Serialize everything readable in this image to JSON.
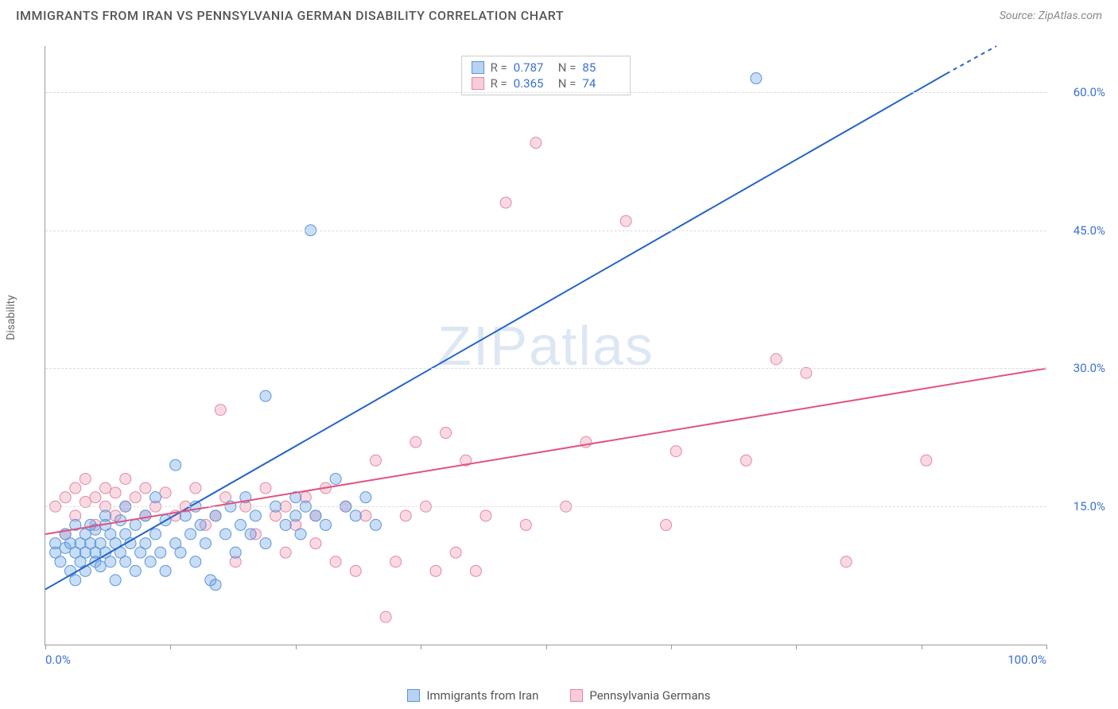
{
  "header": {
    "title": "IMMIGRANTS FROM IRAN VS PENNSYLVANIA GERMAN DISABILITY CORRELATION CHART",
    "source_prefix": "Source: ",
    "source_link": "ZipAtlas.com"
  },
  "watermark": {
    "text_bold": "ZIP",
    "text_thin": "atlas"
  },
  "chart": {
    "type": "scatter",
    "y_axis_label": "Disability",
    "x_range": [
      0,
      100
    ],
    "y_range": [
      0,
      65
    ],
    "x_min_label": "0.0%",
    "x_max_label": "100.0%",
    "y_ticks": [
      15.0,
      30.0,
      45.0,
      60.0
    ],
    "y_tick_labels": [
      "15.0%",
      "30.0%",
      "45.0%",
      "60.0%"
    ],
    "x_ticks": [
      0,
      12.5,
      25,
      37.5,
      50,
      62.5,
      75,
      87.5,
      100
    ],
    "grid_color": "#dddddd",
    "axis_color": "#999999",
    "background_color": "#ffffff",
    "series": [
      {
        "name": "Immigrants from Iran",
        "color_fill": "rgba(100,160,230,0.35)",
        "color_stroke": "#5a95d8",
        "swatch_fill": "#b8d2f0",
        "swatch_stroke": "#5a95d8",
        "r_stat": "0.787",
        "n_stat": "85",
        "trend": {
          "x1": 0,
          "y1": 6,
          "x2": 90,
          "y2": 62,
          "color": "#2464c8",
          "width": 2
        },
        "trend_dash_extend": {
          "x1": 90,
          "y1": 62,
          "x2": 95,
          "y2": 65
        },
        "points": [
          [
            1,
            10
          ],
          [
            1,
            11
          ],
          [
            1.5,
            9
          ],
          [
            2,
            10.5
          ],
          [
            2,
            12
          ],
          [
            2.5,
            8
          ],
          [
            2.5,
            11
          ],
          [
            3,
            10
          ],
          [
            3,
            13
          ],
          [
            3,
            7
          ],
          [
            3.5,
            11
          ],
          [
            3.5,
            9
          ],
          [
            4,
            10
          ],
          [
            4,
            12
          ],
          [
            4,
            8
          ],
          [
            4.5,
            11
          ],
          [
            4.5,
            13
          ],
          [
            5,
            9
          ],
          [
            5,
            10
          ],
          [
            5,
            12.5
          ],
          [
            5.5,
            8.5
          ],
          [
            5.5,
            11
          ],
          [
            6,
            10
          ],
          [
            6,
            13
          ],
          [
            6,
            14
          ],
          [
            6.5,
            9
          ],
          [
            6.5,
            12
          ],
          [
            7,
            7
          ],
          [
            7,
            11
          ],
          [
            7.5,
            10
          ],
          [
            7.5,
            13.5
          ],
          [
            8,
            9
          ],
          [
            8,
            12
          ],
          [
            8,
            15
          ],
          [
            8.5,
            11
          ],
          [
            9,
            8
          ],
          [
            9,
            13
          ],
          [
            9.5,
            10
          ],
          [
            10,
            14
          ],
          [
            10,
            11
          ],
          [
            10.5,
            9
          ],
          [
            11,
            12
          ],
          [
            11,
            16
          ],
          [
            11.5,
            10
          ],
          [
            12,
            8
          ],
          [
            12,
            13.5
          ],
          [
            13,
            11
          ],
          [
            13,
            19.5
          ],
          [
            13.5,
            10
          ],
          [
            14,
            14
          ],
          [
            14.5,
            12
          ],
          [
            15,
            9
          ],
          [
            15,
            15
          ],
          [
            15.5,
            13
          ],
          [
            16,
            11
          ],
          [
            16.5,
            7
          ],
          [
            17,
            14
          ],
          [
            17,
            6.5
          ],
          [
            18,
            12
          ],
          [
            18.5,
            15
          ],
          [
            19,
            10
          ],
          [
            19.5,
            13
          ],
          [
            20,
            16
          ],
          [
            20.5,
            12
          ],
          [
            21,
            14
          ],
          [
            22,
            11
          ],
          [
            22,
            27
          ],
          [
            23,
            15
          ],
          [
            24,
            13
          ],
          [
            25,
            14
          ],
          [
            25,
            16
          ],
          [
            25.5,
            12
          ],
          [
            26,
            15
          ],
          [
            26.5,
            45
          ],
          [
            27,
            14
          ],
          [
            28,
            13
          ],
          [
            29,
            18
          ],
          [
            30,
            15
          ],
          [
            31,
            14
          ],
          [
            32,
            16
          ],
          [
            33,
            13
          ],
          [
            71,
            61.5
          ]
        ]
      },
      {
        "name": "Pennsylvania Germans",
        "color_fill": "rgba(235,130,160,0.30)",
        "color_stroke": "#e389a4",
        "swatch_fill": "#f6cdd8",
        "swatch_stroke": "#e389a4",
        "r_stat": "0.365",
        "n_stat": "74",
        "trend": {
          "x1": 0,
          "y1": 12,
          "x2": 100,
          "y2": 30,
          "color": "#e15380",
          "width": 2
        },
        "points": [
          [
            1,
            15
          ],
          [
            2,
            16
          ],
          [
            2,
            12
          ],
          [
            3,
            17
          ],
          [
            3,
            14
          ],
          [
            4,
            15.5
          ],
          [
            4,
            18
          ],
          [
            5,
            16
          ],
          [
            5,
            13
          ],
          [
            6,
            17
          ],
          [
            6,
            15
          ],
          [
            7,
            16.5
          ],
          [
            7,
            14
          ],
          [
            8,
            15
          ],
          [
            8,
            18
          ],
          [
            9,
            16
          ],
          [
            10,
            17
          ],
          [
            10,
            14
          ],
          [
            11,
            15
          ],
          [
            12,
            16.5
          ],
          [
            13,
            14
          ],
          [
            14,
            15
          ],
          [
            15,
            17
          ],
          [
            16,
            13
          ],
          [
            17,
            14
          ],
          [
            17.5,
            25.5
          ],
          [
            18,
            16
          ],
          [
            19,
            9
          ],
          [
            20,
            15
          ],
          [
            21,
            12
          ],
          [
            22,
            17
          ],
          [
            23,
            14
          ],
          [
            24,
            10
          ],
          [
            24,
            15
          ],
          [
            25,
            13
          ],
          [
            26,
            16
          ],
          [
            27,
            11
          ],
          [
            27,
            14
          ],
          [
            28,
            17
          ],
          [
            29,
            9
          ],
          [
            30,
            15
          ],
          [
            31,
            8
          ],
          [
            32,
            14
          ],
          [
            33,
            20
          ],
          [
            34,
            3
          ],
          [
            35,
            9
          ],
          [
            36,
            14
          ],
          [
            37,
            22
          ],
          [
            38,
            15
          ],
          [
            39,
            8
          ],
          [
            40,
            23
          ],
          [
            41,
            10
          ],
          [
            42,
            20
          ],
          [
            43,
            8
          ],
          [
            44,
            14
          ],
          [
            46,
            48
          ],
          [
            48,
            13
          ],
          [
            49,
            54.5
          ],
          [
            52,
            15
          ],
          [
            54,
            22
          ],
          [
            58,
            46
          ],
          [
            62,
            13
          ],
          [
            63,
            21
          ],
          [
            70,
            20
          ],
          [
            73,
            31
          ],
          [
            76,
            29.5
          ],
          [
            80,
            9
          ],
          [
            88,
            20
          ]
        ]
      }
    ]
  },
  "legend_bottom": {
    "items": [
      "Immigrants from Iran",
      "Pennsylvania Germans"
    ]
  }
}
